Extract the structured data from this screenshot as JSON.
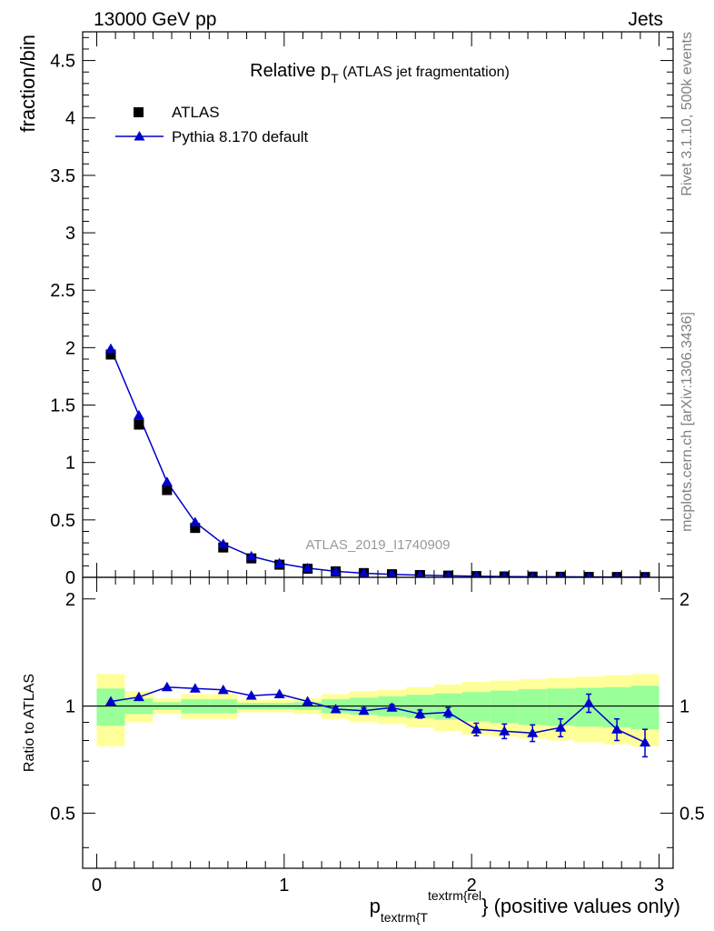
{
  "header": {
    "energy": "13000 GeV pp",
    "process": "Jets"
  },
  "side_texts": {
    "rivet": "Rivet 3.1.10,  500k events",
    "mcplots": "mcplots.cern.ch [arXiv:1306.3436]"
  },
  "watermark": "ATLAS_2019_I1740909",
  "colors": {
    "mc": "#0000cc",
    "band_inner": "#99ff99",
    "band_outer": "#ffff99",
    "data": "#000000"
  },
  "chart_data": [
    {
      "type": "scatter",
      "panel": "main",
      "title": {
        "main": "Relative p",
        "sub": "T",
        "suffix": " (ATLAS jet fragmentation)"
      },
      "ylabel": "fraction/bin",
      "ylim": [
        0,
        4.75
      ],
      "yticks": [
        "0",
        "0.5",
        "1",
        "1.5",
        "2",
        "2.5",
        "3",
        "3.5",
        "4",
        "4.5"
      ],
      "xlim": [
        -0.075,
        3.075
      ],
      "legend": {
        "position": "top-left",
        "entries": [
          "ATLAS",
          "Pythia 8.170 default"
        ]
      },
      "x": [
        0.075,
        0.225,
        0.375,
        0.525,
        0.675,
        0.825,
        0.975,
        1.125,
        1.275,
        1.425,
        1.575,
        1.725,
        1.875,
        2.025,
        2.175,
        2.325,
        2.475,
        2.625,
        2.775,
        2.925
      ],
      "series": [
        {
          "name": "ATLAS",
          "values": [
            1.94,
            1.33,
            0.76,
            0.43,
            0.26,
            0.165,
            0.11,
            0.075,
            0.052,
            0.037,
            0.027,
            0.02,
            0.015,
            0.011,
            0.008,
            0.006,
            0.005,
            0.004,
            0.003,
            0.0025
          ]
        },
        {
          "name": "Pythia 8.170 default",
          "values": [
            1.99,
            1.41,
            0.83,
            0.48,
            0.29,
            0.183,
            0.122,
            0.08,
            0.052,
            0.036,
            0.026,
            0.019,
            0.014,
            0.0095,
            0.007,
            0.005,
            0.0044,
            0.0041,
            0.0026,
            0.002
          ]
        }
      ]
    },
    {
      "type": "scatter",
      "panel": "ratio",
      "ylabel": "Ratio to ATLAS",
      "ylim": [
        0.35,
        2.3
      ],
      "yticks": [
        "0.5",
        "1",
        "2"
      ],
      "xlabel": {
        "main": "p",
        "sub": "textrm{T",
        "sup": "textrm{rel",
        "suffix": "} (positive values only)"
      },
      "xticks": [
        "0",
        "1",
        "2",
        "3"
      ],
      "x": [
        0.075,
        0.225,
        0.375,
        0.525,
        0.675,
        0.825,
        0.975,
        1.125,
        1.275,
        1.425,
        1.575,
        1.725,
        1.875,
        2.025,
        2.175,
        2.325,
        2.475,
        2.625,
        2.775,
        2.925
      ],
      "ratio_values": [
        1.03,
        1.06,
        1.13,
        1.12,
        1.11,
        1.07,
        1.08,
        1.03,
        0.98,
        0.97,
        0.99,
        0.95,
        0.96,
        0.86,
        0.85,
        0.84,
        0.87,
        1.02,
        0.86,
        0.79
      ],
      "ratio_errors": [
        0.005,
        0.005,
        0.005,
        0.005,
        0.005,
        0.008,
        0.01,
        0.012,
        0.015,
        0.018,
        0.02,
        0.025,
        0.03,
        0.035,
        0.04,
        0.045,
        0.05,
        0.06,
        0.06,
        0.07
      ],
      "band_inner": [
        0.12,
        0.05,
        0.025,
        0.045,
        0.045,
        0.02,
        0.02,
        0.025,
        0.045,
        0.055,
        0.065,
        0.075,
        0.085,
        0.095,
        0.105,
        0.115,
        0.12,
        0.125,
        0.13,
        0.14
      ],
      "band_outer": [
        0.23,
        0.1,
        0.05,
        0.08,
        0.08,
        0.04,
        0.04,
        0.05,
        0.08,
        0.1,
        0.11,
        0.13,
        0.15,
        0.17,
        0.18,
        0.19,
        0.2,
        0.21,
        0.22,
        0.23
      ]
    }
  ]
}
